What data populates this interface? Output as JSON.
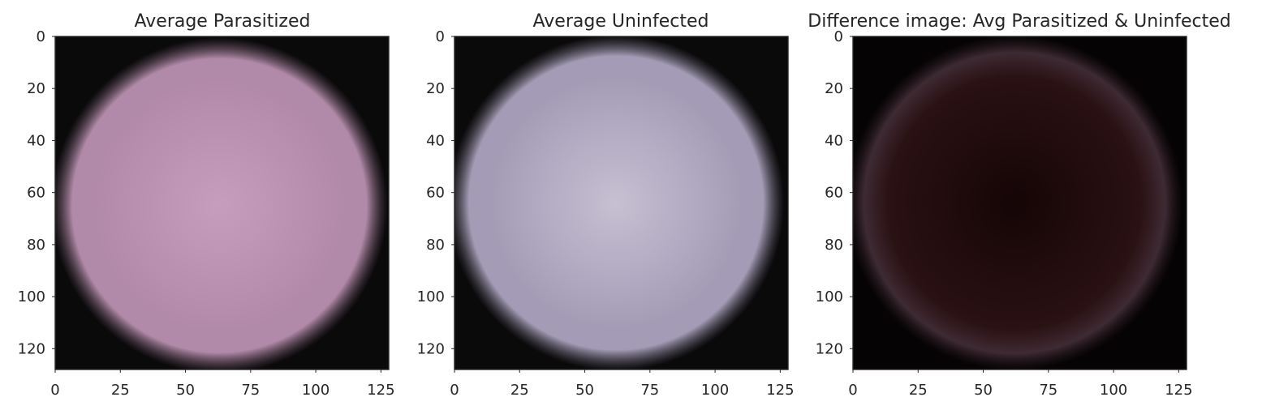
{
  "chart_data": [
    {
      "type": "heatmap",
      "title": "Average Parasitized",
      "xlim": [
        0,
        128
      ],
      "ylim": [
        128,
        0
      ],
      "xticks": [
        0,
        25,
        50,
        75,
        100,
        125
      ],
      "yticks": [
        0,
        20,
        40,
        60,
        80,
        100,
        120
      ],
      "grid": false,
      "image": {
        "background": "#0b0a0b",
        "center": [
          63,
          65
        ],
        "radius": 60,
        "center_color": "#c69dbd",
        "edge_color": "#b28aa9"
      }
    },
    {
      "type": "heatmap",
      "title": "Average Uninfected",
      "xlim": [
        0,
        128
      ],
      "ylim": [
        128,
        0
      ],
      "xticks": [
        0,
        25,
        50,
        75,
        100,
        125
      ],
      "yticks": [
        0,
        20,
        40,
        60,
        80,
        100,
        120
      ],
      "grid": false,
      "image": {
        "background": "#0b0a0b",
        "center": [
          62,
          64
        ],
        "radius": 60,
        "center_color": "#c6c0d2",
        "edge_color": "#a49cb6"
      }
    },
    {
      "type": "heatmap",
      "title": "Difference image: Avg Parasitized & Uninfected",
      "xlim": [
        0,
        128
      ],
      "ylim": [
        128,
        0
      ],
      "xticks": [
        0,
        25,
        50,
        75,
        100,
        125
      ],
      "yticks": [
        0,
        20,
        40,
        60,
        80,
        100,
        120
      ],
      "grid": false,
      "image": {
        "background": "#060304",
        "center": [
          62,
          64
        ],
        "radius": 60,
        "center_color": "#150506",
        "edge_color": "#2a1113",
        "rim_color": "#3e2a33"
      }
    }
  ]
}
